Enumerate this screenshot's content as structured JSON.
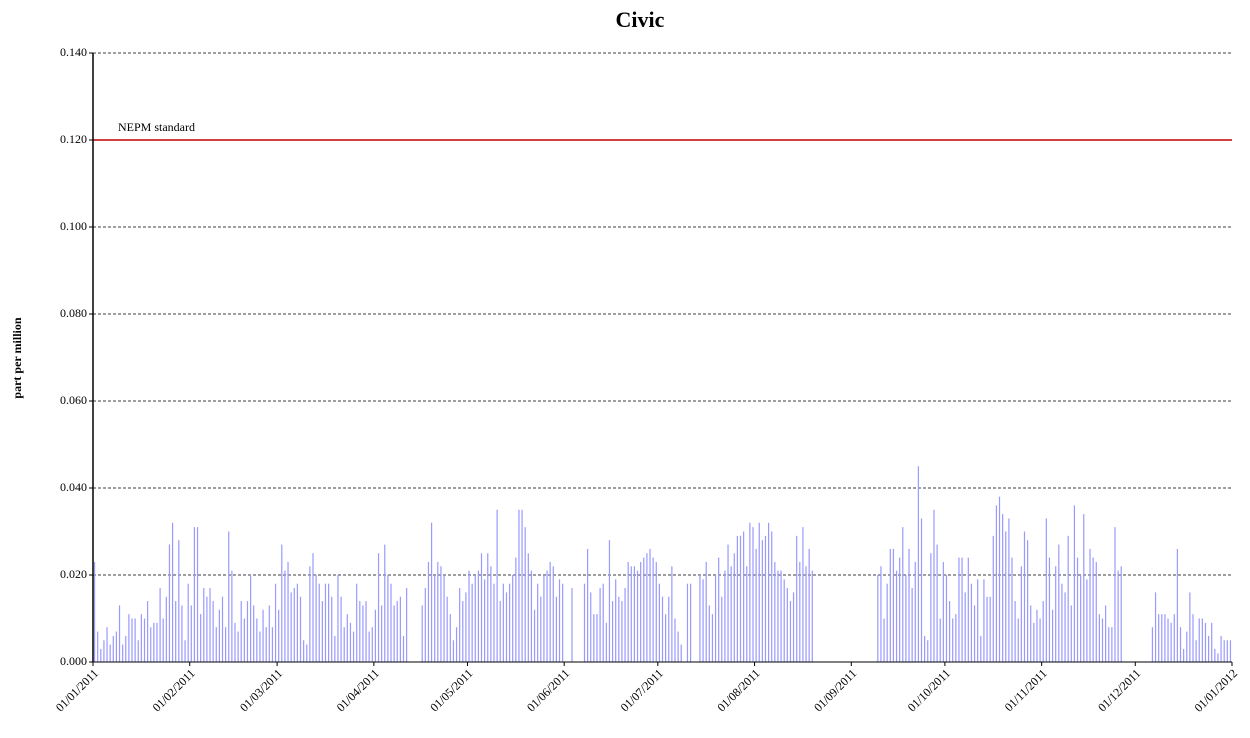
{
  "chart_data": {
    "type": "bar",
    "title": "Civic",
    "y_label": "part per million",
    "x": [
      "01/01/2011",
      "02/01/2011",
      "03/01/2011",
      "04/01/2011",
      "05/01/2011",
      "06/01/2011",
      "07/01/2011",
      "08/01/2011",
      "09/01/2011",
      "10/01/2011",
      "11/01/2011",
      "12/01/2011",
      "13/01/2011",
      "14/01/2011",
      "15/01/2011",
      "16/01/2011",
      "17/01/2011",
      "18/01/2011",
      "19/01/2011",
      "20/01/2011",
      "21/01/2011",
      "22/01/2011",
      "23/01/2011",
      "24/01/2011",
      "25/01/2011",
      "26/01/2011",
      "27/01/2011",
      "28/01/2011",
      "29/01/2011",
      "30/01/2011",
      "31/01/2011",
      "01/02/2011",
      "02/02/2011",
      "03/02/2011",
      "04/02/2011",
      "05/02/2011",
      "06/02/2011",
      "07/02/2011",
      "08/02/2011",
      "09/02/2011",
      "10/02/2011",
      "11/02/2011",
      "12/02/2011",
      "13/02/2011",
      "14/02/2011",
      "15/02/2011",
      "16/02/2011",
      "17/02/2011",
      "18/02/2011",
      "19/02/2011",
      "20/02/2011",
      "21/02/2011",
      "22/02/2011",
      "23/02/2011",
      "24/02/2011",
      "25/02/2011",
      "26/02/2011",
      "27/02/2011",
      "28/02/2011",
      "01/03/2011",
      "02/03/2011",
      "03/03/2011",
      "04/03/2011",
      "05/03/2011",
      "06/03/2011",
      "07/03/2011",
      "08/03/2011",
      "09/03/2011",
      "10/03/2011",
      "11/03/2011",
      "12/03/2011",
      "13/03/2011",
      "14/03/2011",
      "15/03/2011",
      "16/03/2011",
      "17/03/2011",
      "18/03/2011",
      "19/03/2011",
      "20/03/2011",
      "21/03/2011",
      "22/03/2011",
      "23/03/2011",
      "24/03/2011",
      "25/03/2011",
      "26/03/2011",
      "27/03/2011",
      "28/03/2011",
      "29/03/2011",
      "30/03/2011",
      "31/03/2011",
      "01/04/2011",
      "02/04/2011",
      "03/04/2011",
      "04/04/2011",
      "05/04/2011",
      "06/04/2011",
      "07/04/2011",
      "08/04/2011",
      "09/04/2011",
      "10/04/2011",
      "11/04/2011",
      "12/04/2011",
      "13/04/2011",
      "14/04/2011",
      "15/04/2011",
      "16/04/2011",
      "17/04/2011",
      "18/04/2011",
      "19/04/2011",
      "20/04/2011",
      "21/04/2011",
      "22/04/2011",
      "23/04/2011",
      "24/04/2011",
      "25/04/2011",
      "26/04/2011",
      "27/04/2011",
      "28/04/2011",
      "29/04/2011",
      "30/04/2011",
      "01/05/2011",
      "02/05/2011",
      "03/05/2011",
      "04/05/2011",
      "05/05/2011",
      "06/05/2011",
      "07/05/2011",
      "08/05/2011",
      "09/05/2011",
      "10/05/2011",
      "11/05/2011",
      "12/05/2011",
      "13/05/2011",
      "14/05/2011",
      "15/05/2011",
      "16/05/2011",
      "17/05/2011",
      "18/05/2011",
      "19/05/2011",
      "20/05/2011",
      "21/05/2011",
      "22/05/2011",
      "23/05/2011",
      "24/05/2011",
      "25/05/2011",
      "26/05/2011",
      "27/05/2011",
      "28/05/2011",
      "29/05/2011",
      "30/05/2011",
      "31/05/2011",
      "01/06/2011",
      "02/06/2011",
      "03/06/2011",
      "04/06/2011",
      "05/06/2011",
      "06/06/2011",
      "07/06/2011",
      "08/06/2011",
      "09/06/2011",
      "10/06/2011",
      "11/06/2011",
      "12/06/2011",
      "13/06/2011",
      "14/06/2011",
      "15/06/2011",
      "16/06/2011",
      "17/06/2011",
      "18/06/2011",
      "19/06/2011",
      "20/06/2011",
      "21/06/2011",
      "22/06/2011",
      "23/06/2011",
      "24/06/2011",
      "25/06/2011",
      "26/06/2011",
      "27/06/2011",
      "28/06/2011",
      "29/06/2011",
      "30/06/2011",
      "01/07/2011",
      "02/07/2011",
      "03/07/2011",
      "04/07/2011",
      "05/07/2011",
      "06/07/2011",
      "07/07/2011",
      "08/07/2011",
      "09/07/2011",
      "10/07/2011",
      "11/07/2011",
      "12/07/2011",
      "13/07/2011",
      "14/07/2011",
      "15/07/2011",
      "16/07/2011",
      "17/07/2011",
      "18/07/2011",
      "19/07/2011",
      "20/07/2011",
      "21/07/2011",
      "22/07/2011",
      "23/07/2011",
      "24/07/2011",
      "25/07/2011",
      "26/07/2011",
      "27/07/2011",
      "28/07/2011",
      "29/07/2011",
      "30/07/2011",
      "31/07/2011",
      "01/08/2011",
      "02/08/2011",
      "03/08/2011",
      "04/08/2011",
      "05/08/2011",
      "06/08/2011",
      "07/08/2011",
      "08/08/2011",
      "09/08/2011",
      "10/08/2011",
      "11/08/2011",
      "12/08/2011",
      "13/08/2011",
      "14/08/2011",
      "15/08/2011",
      "16/08/2011",
      "17/08/2011",
      "18/08/2011",
      "19/08/2011",
      "20/08/2011",
      "21/08/2011",
      "22/08/2011",
      "23/08/2011",
      "24/08/2011",
      "25/08/2011",
      "26/08/2011",
      "27/08/2011",
      "28/08/2011",
      "29/08/2011",
      "30/08/2011",
      "31/08/2011",
      "01/09/2011",
      "02/09/2011",
      "03/09/2011",
      "04/09/2011",
      "05/09/2011",
      "06/09/2011",
      "07/09/2011",
      "08/09/2011",
      "09/09/2011",
      "10/09/2011",
      "11/09/2011",
      "12/09/2011",
      "13/09/2011",
      "14/09/2011",
      "15/09/2011",
      "16/09/2011",
      "17/09/2011",
      "18/09/2011",
      "19/09/2011",
      "20/09/2011",
      "21/09/2011",
      "22/09/2011",
      "23/09/2011",
      "24/09/2011",
      "25/09/2011",
      "26/09/2011",
      "27/09/2011",
      "28/09/2011",
      "29/09/2011",
      "30/09/2011",
      "01/10/2011",
      "02/10/2011",
      "03/10/2011",
      "04/10/2011",
      "05/10/2011",
      "06/10/2011",
      "07/10/2011",
      "08/10/2011",
      "09/10/2011",
      "10/10/2011",
      "11/10/2011",
      "12/10/2011",
      "13/10/2011",
      "14/10/2011",
      "15/10/2011",
      "16/10/2011",
      "17/10/2011",
      "18/10/2011",
      "19/10/2011",
      "20/10/2011",
      "21/10/2011",
      "22/10/2011",
      "23/10/2011",
      "24/10/2011",
      "25/10/2011",
      "26/10/2011",
      "27/10/2011",
      "28/10/2011",
      "29/10/2011",
      "30/10/2011",
      "31/10/2011",
      "01/11/2011",
      "02/11/2011",
      "03/11/2011",
      "04/11/2011",
      "05/11/2011",
      "06/11/2011",
      "07/11/2011",
      "08/11/2011",
      "09/11/2011",
      "10/11/2011",
      "11/11/2011",
      "12/11/2011",
      "13/11/2011",
      "14/11/2011",
      "15/11/2011",
      "16/11/2011",
      "17/11/2011",
      "18/11/2011",
      "19/11/2011",
      "20/11/2011",
      "21/11/2011",
      "22/11/2011",
      "23/11/2011",
      "24/11/2011",
      "25/11/2011",
      "26/11/2011",
      "27/11/2011",
      "28/11/2011",
      "29/11/2011",
      "30/11/2011",
      "01/12/2011",
      "02/12/2011",
      "03/12/2011",
      "04/12/2011",
      "05/12/2011",
      "06/12/2011",
      "07/12/2011",
      "08/12/2011",
      "09/12/2011",
      "10/12/2011",
      "11/12/2011",
      "12/12/2011",
      "13/12/2011",
      "14/12/2011",
      "15/12/2011",
      "16/12/2011",
      "17/12/2011",
      "18/12/2011",
      "19/12/2011",
      "20/12/2011",
      "21/12/2011",
      "22/12/2011",
      "23/12/2011",
      "24/12/2011",
      "25/12/2011",
      "26/12/2011",
      "27/12/2011",
      "28/12/2011",
      "29/12/2011",
      "30/12/2011",
      "31/12/2011"
    ],
    "values": [
      0.023,
      0.007,
      0.003,
      0.005,
      0.008,
      0.004,
      0.006,
      0.007,
      0.013,
      0.004,
      0.006,
      0.011,
      0.01,
      0.01,
      0.005,
      0.011,
      0.01,
      0.014,
      0.008,
      0.009,
      0.009,
      0.017,
      0.01,
      0.015,
      0.027,
      0.032,
      0.014,
      0.028,
      0.013,
      0.005,
      0.018,
      0.013,
      0.031,
      0.031,
      0.011,
      0.017,
      0.015,
      0.017,
      0.014,
      0.008,
      0.012,
      0.015,
      0.008,
      0.03,
      0.021,
      0.009,
      0.007,
      0.014,
      0.01,
      0.014,
      0.02,
      0.013,
      0.01,
      0.007,
      0.012,
      0.008,
      0.013,
      0.008,
      0.018,
      0.012,
      0.027,
      0.021,
      0.023,
      0.016,
      0.017,
      0.018,
      0.015,
      0.005,
      0.004,
      0.022,
      0.025,
      0.02,
      0.018,
      0.014,
      0.018,
      0.018,
      0.015,
      0.006,
      0.02,
      0.015,
      0.008,
      0.011,
      0.009,
      0.007,
      0.018,
      0.014,
      0.013,
      0.014,
      0.007,
      0.008,
      0.012,
      0.025,
      0.013,
      0.027,
      0.02,
      0.018,
      0.013,
      0.014,
      0.015,
      0.006,
      0.017,
      null,
      null,
      null,
      null,
      0.013,
      0.017,
      0.023,
      0.032,
      0.02,
      0.023,
      0.022,
      0.02,
      0.015,
      0.011,
      0.005,
      0.008,
      0.017,
      0.014,
      0.016,
      0.021,
      0.018,
      0.02,
      0.021,
      0.025,
      0.019,
      0.025,
      0.022,
      0.018,
      0.035,
      0.014,
      0.018,
      0.016,
      0.018,
      0.02,
      0.024,
      0.035,
      0.035,
      0.031,
      0.025,
      0.021,
      0.012,
      0.018,
      0.015,
      0.02,
      0.021,
      0.023,
      0.022,
      0.015,
      0.019,
      0.018,
      null,
      null,
      0.017,
      null,
      null,
      null,
      0.018,
      0.026,
      0.016,
      0.011,
      0.011,
      0.017,
      0.018,
      0.009,
      0.028,
      0.014,
      0.019,
      0.015,
      0.014,
      0.017,
      0.023,
      0.022,
      0.022,
      0.021,
      0.023,
      0.024,
      0.025,
      0.026,
      0.024,
      0.023,
      0.018,
      0.015,
      0.011,
      0.015,
      0.022,
      0.01,
      0.007,
      0.004,
      null,
      0.018,
      0.018,
      null,
      null,
      0.02,
      0.019,
      0.023,
      0.013,
      0.011,
      0.02,
      0.024,
      0.015,
      0.021,
      0.027,
      0.022,
      0.025,
      0.029,
      0.029,
      0.03,
      0.022,
      0.032,
      0.031,
      0.026,
      0.032,
      0.028,
      0.029,
      0.032,
      0.03,
      0.023,
      0.021,
      0.021,
      0.019,
      0.017,
      0.014,
      0.016,
      0.029,
      0.023,
      0.031,
      0.022,
      0.026,
      0.021,
      null,
      null,
      null,
      null,
      null,
      null,
      null,
      null,
      null,
      null,
      null,
      null,
      null,
      null,
      null,
      null,
      null,
      null,
      null,
      null,
      0.02,
      0.022,
      0.01,
      0.018,
      0.026,
      0.026,
      0.021,
      0.024,
      0.031,
      0.02,
      0.026,
      0.017,
      0.023,
      0.045,
      0.033,
      0.006,
      0.005,
      0.025,
      0.035,
      0.027,
      0.01,
      0.023,
      0.02,
      0.014,
      0.01,
      0.011,
      0.024,
      0.024,
      0.016,
      0.024,
      0.018,
      0.013,
      0.019,
      0.006,
      0.019,
      0.015,
      0.015,
      0.029,
      0.036,
      0.038,
      0.034,
      0.03,
      0.033,
      0.024,
      0.014,
      0.01,
      0.022,
      0.03,
      0.028,
      0.013,
      0.009,
      0.012,
      0.01,
      0.014,
      0.033,
      0.024,
      0.012,
      0.022,
      0.027,
      0.018,
      0.016,
      0.029,
      0.013,
      0.036,
      0.024,
      0.02,
      0.034,
      0.019,
      0.026,
      0.024,
      0.023,
      0.011,
      0.01,
      0.013,
      0.008,
      0.008,
      0.031,
      0.021,
      0.022,
      null,
      null,
      null,
      null,
      null,
      null,
      null,
      null,
      null,
      0.008,
      0.016,
      0.011,
      0.011,
      0.011,
      0.01,
      0.009,
      0.011,
      0.026,
      0.008,
      0.003,
      0.007,
      0.016,
      0.011,
      0.005,
      0.01,
      0.01,
      0.009,
      0.006,
      0.009,
      0.003,
      0.002,
      0.006,
      0.005,
      0.005,
      0.005
    ],
    "color": "#9999ff",
    "xlim": [
      "01/01/2011",
      "01/01/2012"
    ],
    "xticks": [
      "01/01/2011",
      "01/02/2011",
      "01/03/2011",
      "01/04/2011",
      "01/05/2011",
      "01/06/2011",
      "01/07/2011",
      "01/08/2011",
      "01/09/2011",
      "01/10/2011",
      "01/11/2011",
      "01/12/2011",
      "01/01/2012"
    ],
    "ylim": [
      0,
      0.14
    ],
    "yticks": [
      {
        "value": 0,
        "label": "0.000"
      },
      {
        "value": 0.02,
        "label": "0.020"
      },
      {
        "value": 0.04,
        "label": "0.040"
      },
      {
        "value": 0.06,
        "label": "0.060"
      },
      {
        "value": 0.08,
        "label": "0.080"
      },
      {
        "value": 0.1,
        "label": "0.100"
      },
      {
        "value": 0.12,
        "label": "0.120"
      },
      {
        "value": 0.14,
        "label": "0.140"
      }
    ],
    "grid": true,
    "reference_lines": [
      {
        "value": 0.12,
        "label": "NEPM standard",
        "color": "#c00000"
      }
    ]
  }
}
